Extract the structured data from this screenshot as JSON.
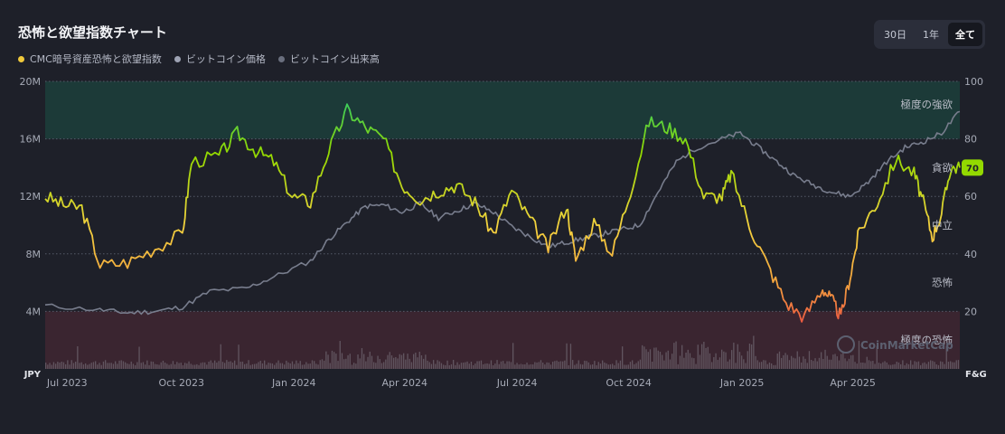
{
  "title": "恐怖と欲望指数チャート",
  "legend": [
    {
      "label": "CMC暗号資産恐怖と欲望指数",
      "color": "#f0c93b"
    },
    {
      "label": "ビットコイン価格",
      "color": "#9ea3b4"
    },
    {
      "label": "ビットコイン出来高",
      "color": "#6a6f7e"
    }
  ],
  "range_buttons": [
    "30日",
    "1年",
    "全て"
  ],
  "active_range": "全て",
  "watermark": "CoinMarketCap",
  "chart_data": {
    "type": "line",
    "x_ticks": [
      "Jul 2023",
      "Oct 2023",
      "Jan 2024",
      "Apr 2024",
      "Jul 2024",
      "Oct 2024",
      "Jan 2025",
      "Apr 2025"
    ],
    "left_axis": {
      "name": "JPY",
      "ticks": [
        "4M",
        "8M",
        "12M",
        "16M",
        "20M"
      ],
      "values": [
        4,
        8,
        12,
        16,
        20
      ],
      "range": [
        0,
        20
      ]
    },
    "right_axis": {
      "name": "F&G",
      "ticks": [
        "20",
        "40",
        "60",
        "80",
        "100"
      ],
      "values": [
        20,
        40,
        60,
        80,
        100
      ],
      "range": [
        0,
        100
      ]
    },
    "zones": [
      {
        "label": "極度の強欲",
        "from": 80,
        "to": 100,
        "color": "#1c3a38"
      },
      {
        "label": "貪欲",
        "value": 70
      },
      {
        "label": "中立",
        "value": 50
      },
      {
        "label": "恐怖",
        "value": 30
      },
      {
        "label": "極度の恐怖",
        "from": 0,
        "to": 20,
        "color": "#3a2530"
      }
    ],
    "current_value": "70",
    "fear_greed_index": [
      {
        "x": 0.0,
        "v": 60
      },
      {
        "x": 0.02,
        "v": 57
      },
      {
        "x": 0.04,
        "v": 56
      },
      {
        "x": 0.06,
        "v": 36
      },
      {
        "x": 0.09,
        "v": 37
      },
      {
        "x": 0.12,
        "v": 42
      },
      {
        "x": 0.15,
        "v": 47
      },
      {
        "x": 0.16,
        "v": 72
      },
      {
        "x": 0.19,
        "v": 74
      },
      {
        "x": 0.21,
        "v": 82
      },
      {
        "x": 0.23,
        "v": 76
      },
      {
        "x": 0.25,
        "v": 72
      },
      {
        "x": 0.27,
        "v": 60
      },
      {
        "x": 0.29,
        "v": 58
      },
      {
        "x": 0.31,
        "v": 76
      },
      {
        "x": 0.33,
        "v": 90
      },
      {
        "x": 0.35,
        "v": 84
      },
      {
        "x": 0.37,
        "v": 80
      },
      {
        "x": 0.39,
        "v": 64
      },
      {
        "x": 0.41,
        "v": 59
      },
      {
        "x": 0.43,
        "v": 62
      },
      {
        "x": 0.45,
        "v": 64
      },
      {
        "x": 0.47,
        "v": 58
      },
      {
        "x": 0.49,
        "v": 47
      },
      {
        "x": 0.51,
        "v": 62
      },
      {
        "x": 0.53,
        "v": 52
      },
      {
        "x": 0.55,
        "v": 42
      },
      {
        "x": 0.57,
        "v": 57
      },
      {
        "x": 0.58,
        "v": 38
      },
      {
        "x": 0.6,
        "v": 51
      },
      {
        "x": 0.62,
        "v": 40
      },
      {
        "x": 0.64,
        "v": 62
      },
      {
        "x": 0.66,
        "v": 86
      },
      {
        "x": 0.68,
        "v": 84
      },
      {
        "x": 0.7,
        "v": 80
      },
      {
        "x": 0.72,
        "v": 60
      },
      {
        "x": 0.74,
        "v": 60
      },
      {
        "x": 0.75,
        "v": 68
      },
      {
        "x": 0.77,
        "v": 50
      },
      {
        "x": 0.79,
        "v": 36
      },
      {
        "x": 0.81,
        "v": 23
      },
      {
        "x": 0.83,
        "v": 18
      },
      {
        "x": 0.85,
        "v": 28
      },
      {
        "x": 0.86,
        "v": 24
      },
      {
        "x": 0.87,
        "v": 18
      },
      {
        "x": 0.88,
        "v": 32
      },
      {
        "x": 0.89,
        "v": 48
      },
      {
        "x": 0.91,
        "v": 58
      },
      {
        "x": 0.93,
        "v": 73
      },
      {
        "x": 0.95,
        "v": 68
      },
      {
        "x": 0.96,
        "v": 58
      },
      {
        "x": 0.97,
        "v": 46
      },
      {
        "x": 0.98,
        "v": 54
      },
      {
        "x": 0.99,
        "v": 70
      },
      {
        "x": 1.0,
        "v": 70
      }
    ],
    "btc_price_jpy_millions": [
      {
        "x": 0.0,
        "v": 4.4
      },
      {
        "x": 0.06,
        "v": 4.1
      },
      {
        "x": 0.09,
        "v": 3.9
      },
      {
        "x": 0.12,
        "v": 4.0
      },
      {
        "x": 0.15,
        "v": 4.3
      },
      {
        "x": 0.18,
        "v": 5.4
      },
      {
        "x": 0.22,
        "v": 5.6
      },
      {
        "x": 0.25,
        "v": 6.4
      },
      {
        "x": 0.29,
        "v": 7.5
      },
      {
        "x": 0.31,
        "v": 9.0
      },
      {
        "x": 0.33,
        "v": 10.2
      },
      {
        "x": 0.35,
        "v": 11.3
      },
      {
        "x": 0.37,
        "v": 11.4
      },
      {
        "x": 0.39,
        "v": 10.9
      },
      {
        "x": 0.41,
        "v": 11.5
      },
      {
        "x": 0.43,
        "v": 10.5
      },
      {
        "x": 0.45,
        "v": 11.0
      },
      {
        "x": 0.47,
        "v": 11.5
      },
      {
        "x": 0.49,
        "v": 10.9
      },
      {
        "x": 0.51,
        "v": 9.9
      },
      {
        "x": 0.53,
        "v": 9.2
      },
      {
        "x": 0.55,
        "v": 8.5
      },
      {
        "x": 0.57,
        "v": 8.8
      },
      {
        "x": 0.59,
        "v": 9.1
      },
      {
        "x": 0.61,
        "v": 9.4
      },
      {
        "x": 0.63,
        "v": 9.7
      },
      {
        "x": 0.65,
        "v": 10.0
      },
      {
        "x": 0.67,
        "v": 12.3
      },
      {
        "x": 0.69,
        "v": 14.4
      },
      {
        "x": 0.71,
        "v": 15.3
      },
      {
        "x": 0.74,
        "v": 16.0
      },
      {
        "x": 0.76,
        "v": 16.4
      },
      {
        "x": 0.78,
        "v": 15.4
      },
      {
        "x": 0.8,
        "v": 14.4
      },
      {
        "x": 0.82,
        "v": 13.4
      },
      {
        "x": 0.84,
        "v": 12.8
      },
      {
        "x": 0.86,
        "v": 12.3
      },
      {
        "x": 0.88,
        "v": 12.0
      },
      {
        "x": 0.9,
        "v": 13.0
      },
      {
        "x": 0.92,
        "v": 14.4
      },
      {
        "x": 0.94,
        "v": 15.4
      },
      {
        "x": 0.96,
        "v": 15.8
      },
      {
        "x": 0.98,
        "v": 16.4
      },
      {
        "x": 1.0,
        "v": 17.9
      }
    ],
    "btc_volume": "relative daily volume bars along the bottom, spikes around Jan 2025 and Apr 2025"
  }
}
